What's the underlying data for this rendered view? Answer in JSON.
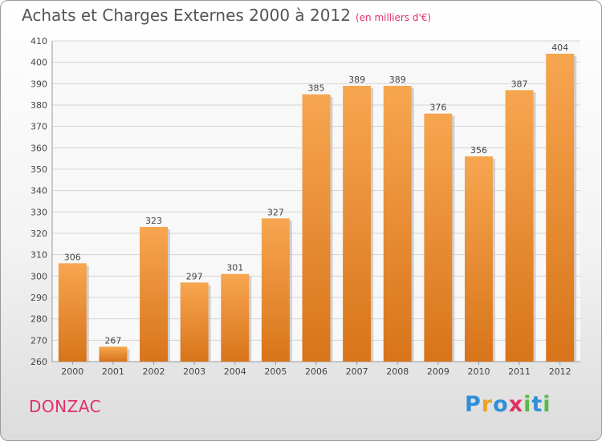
{
  "chart_data": {
    "type": "bar",
    "title": "Achats et Charges Externes 2000 à 2012",
    "subtitle": "(en milliers d'€)",
    "categories": [
      "2000",
      "2001",
      "2002",
      "2003",
      "2004",
      "2005",
      "2006",
      "2007",
      "2008",
      "2009",
      "2010",
      "2011",
      "2012"
    ],
    "values": [
      306,
      267,
      323,
      297,
      301,
      327,
      385,
      389,
      389,
      376,
      356,
      387,
      404
    ],
    "ylim": [
      260,
      410
    ],
    "yticks": [
      260,
      270,
      280,
      290,
      300,
      310,
      320,
      330,
      340,
      350,
      360,
      370,
      380,
      390,
      400,
      410
    ],
    "grid": true,
    "bar_color": "#f08a2a"
  },
  "footer": {
    "location": "DONZAC",
    "logo_letters": [
      "P",
      "r",
      "o",
      "x",
      "i",
      "t",
      "i"
    ],
    "logo_colors": [
      "#2f8fd8",
      "#f0a020",
      "#2f8fd8",
      "#e03060",
      "#58b848",
      "#2f8fd8",
      "#58b848"
    ]
  }
}
